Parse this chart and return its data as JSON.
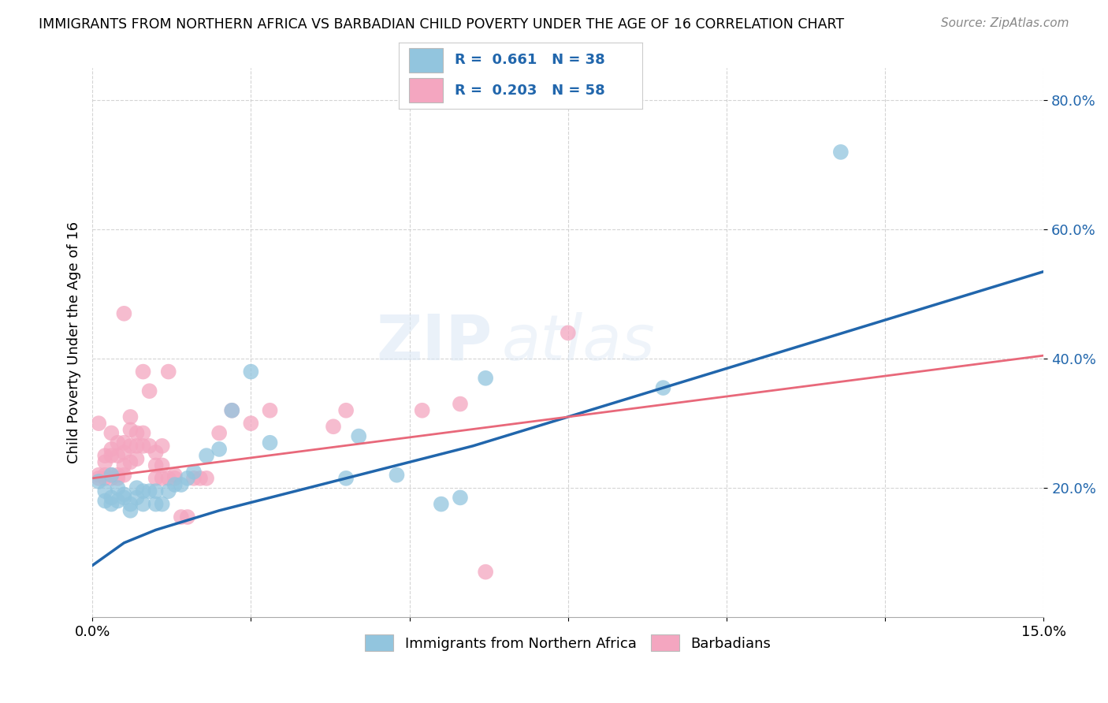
{
  "title": "IMMIGRANTS FROM NORTHERN AFRICA VS BARBADIAN CHILD POVERTY UNDER THE AGE OF 16 CORRELATION CHART",
  "source": "Source: ZipAtlas.com",
  "ylabel": "Child Poverty Under the Age of 16",
  "xlim": [
    0.0,
    0.15
  ],
  "ylim": [
    0.0,
    0.85
  ],
  "yticks": [
    0.2,
    0.4,
    0.6,
    0.8
  ],
  "ytick_labels": [
    "20.0%",
    "40.0%",
    "60.0%",
    "80.0%"
  ],
  "xticks": [
    0.0,
    0.025,
    0.05,
    0.075,
    0.1,
    0.125,
    0.15
  ],
  "xtick_labels": [
    "0.0%",
    "",
    "",
    "",
    "",
    "",
    "15.0%"
  ],
  "blue_color": "#92c5de",
  "pink_color": "#f4a6c0",
  "blue_line_color": "#2166ac",
  "pink_line_color": "#e8687a",
  "legend_R_blue": "0.661",
  "legend_N_blue": "38",
  "legend_R_pink": "0.203",
  "legend_N_pink": "58",
  "watermark_zip": "ZIP",
  "watermark_atlas": "atlas",
  "blue_scatter_x": [
    0.001,
    0.002,
    0.002,
    0.003,
    0.003,
    0.003,
    0.004,
    0.004,
    0.005,
    0.005,
    0.006,
    0.006,
    0.007,
    0.007,
    0.008,
    0.008,
    0.009,
    0.01,
    0.01,
    0.011,
    0.012,
    0.013,
    0.014,
    0.015,
    0.016,
    0.018,
    0.02,
    0.022,
    0.025,
    0.028,
    0.04,
    0.042,
    0.048,
    0.055,
    0.058,
    0.062,
    0.09,
    0.118
  ],
  "blue_scatter_y": [
    0.21,
    0.195,
    0.18,
    0.22,
    0.185,
    0.175,
    0.2,
    0.18,
    0.19,
    0.185,
    0.175,
    0.165,
    0.2,
    0.185,
    0.195,
    0.175,
    0.195,
    0.195,
    0.175,
    0.175,
    0.195,
    0.205,
    0.205,
    0.215,
    0.225,
    0.25,
    0.26,
    0.32,
    0.38,
    0.27,
    0.215,
    0.28,
    0.22,
    0.175,
    0.185,
    0.37,
    0.355,
    0.72
  ],
  "pink_scatter_x": [
    0.001,
    0.001,
    0.001,
    0.002,
    0.002,
    0.002,
    0.002,
    0.003,
    0.003,
    0.003,
    0.003,
    0.003,
    0.004,
    0.004,
    0.004,
    0.004,
    0.005,
    0.005,
    0.005,
    0.005,
    0.005,
    0.006,
    0.006,
    0.006,
    0.006,
    0.007,
    0.007,
    0.007,
    0.008,
    0.008,
    0.008,
    0.009,
    0.009,
    0.01,
    0.01,
    0.01,
    0.011,
    0.011,
    0.011,
    0.012,
    0.012,
    0.013,
    0.013,
    0.014,
    0.015,
    0.016,
    0.017,
    0.018,
    0.02,
    0.022,
    0.025,
    0.028,
    0.038,
    0.04,
    0.052,
    0.058,
    0.062,
    0.075
  ],
  "pink_scatter_y": [
    0.215,
    0.22,
    0.3,
    0.215,
    0.22,
    0.24,
    0.25,
    0.215,
    0.22,
    0.25,
    0.26,
    0.285,
    0.215,
    0.22,
    0.25,
    0.27,
    0.22,
    0.235,
    0.255,
    0.27,
    0.47,
    0.24,
    0.265,
    0.29,
    0.31,
    0.245,
    0.265,
    0.285,
    0.265,
    0.285,
    0.38,
    0.265,
    0.35,
    0.215,
    0.235,
    0.255,
    0.215,
    0.235,
    0.265,
    0.215,
    0.38,
    0.215,
    0.22,
    0.155,
    0.155,
    0.215,
    0.215,
    0.215,
    0.285,
    0.32,
    0.3,
    0.32,
    0.295,
    0.32,
    0.32,
    0.33,
    0.07,
    0.44
  ],
  "blue_line_x": [
    0.0,
    0.005,
    0.01,
    0.02,
    0.03,
    0.04,
    0.05,
    0.06,
    0.07,
    0.08,
    0.09,
    0.1,
    0.11,
    0.12,
    0.13,
    0.14,
    0.15
  ],
  "blue_line_y": [
    0.08,
    0.115,
    0.135,
    0.165,
    0.19,
    0.215,
    0.24,
    0.265,
    0.295,
    0.325,
    0.355,
    0.385,
    0.415,
    0.445,
    0.475,
    0.505,
    0.535
  ],
  "pink_line_x": [
    0.0,
    0.15
  ],
  "pink_line_y": [
    0.215,
    0.405
  ]
}
